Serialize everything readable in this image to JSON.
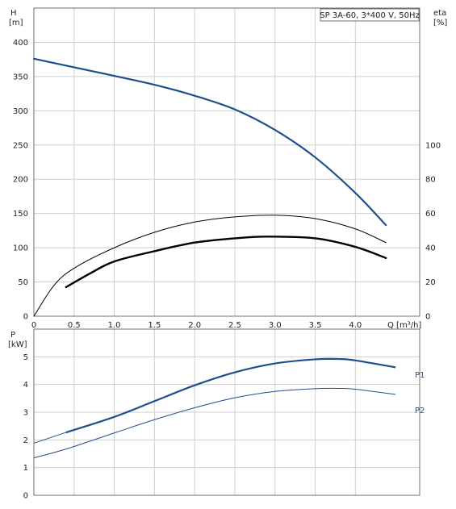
{
  "chart_data": [
    {
      "type": "line",
      "title": "SP 3A-60, 3*400 V, 50Hz",
      "xlabel": "Q [m³/h]",
      "ylabel": [
        "H",
        "[m]"
      ],
      "y2label": [
        "eta",
        "[%]"
      ],
      "xlim": [
        0,
        4.8
      ],
      "ylim": [
        0,
        450
      ],
      "y2lim": [
        0,
        180
      ],
      "grid": true,
      "x_ticks": [
        "0",
        "0.5",
        "1.0",
        "1.5",
        "2.0",
        "2.5",
        "3.0",
        "3.5",
        "4.0"
      ],
      "y_ticks": [
        "0",
        "50",
        "100",
        "150",
        "200",
        "250",
        "300",
        "350",
        "400"
      ],
      "y2_ticks": [
        "0",
        "20",
        "40",
        "60",
        "80",
        "100"
      ],
      "series": [
        {
          "role": "head",
          "axis": "y",
          "color": "#1f4e8c",
          "x": [
            0,
            0.4,
            1.0,
            1.5,
            2.0,
            2.5,
            3.0,
            3.5,
            4.0,
            4.38
          ],
          "y": [
            376,
            366,
            351,
            338,
            322,
            302,
            272,
            232,
            180,
            133
          ]
        },
        {
          "role": "efficiency-thin",
          "axis": "y2",
          "color": "#000000",
          "x": [
            0,
            0.25,
            0.5,
            1.0,
            1.5,
            2.0,
            2.5,
            3.0,
            3.5,
            4.0,
            4.38
          ],
          "y": [
            0,
            18,
            28,
            40,
            49,
            55,
            58,
            59,
            57,
            51,
            43
          ]
        },
        {
          "role": "efficiency-thick",
          "axis": "y2",
          "color": "#000000",
          "x": [
            0.4,
            0.7,
            1.0,
            1.5,
            2.0,
            2.5,
            2.9,
            3.5,
            4.0,
            4.38
          ],
          "y": [
            17,
            25,
            32,
            38,
            43,
            45.5,
            46.5,
            45.5,
            40.5,
            34
          ]
        }
      ]
    },
    {
      "type": "line",
      "ylabel": [
        "P",
        "[kW]"
      ],
      "xlim": [
        0,
        4.8
      ],
      "ylim": [
        0,
        6
      ],
      "grid": true,
      "y_ticks": [
        "0",
        "1",
        "2",
        "3",
        "4",
        "5"
      ],
      "series": [
        {
          "name": "P1",
          "color": "#1f4e8c",
          "x": [
            0,
            0.4,
            1.0,
            1.5,
            2.0,
            2.5,
            3.0,
            3.5,
            3.8,
            4.0,
            4.5
          ],
          "y": [
            1.88,
            2.27,
            2.83,
            3.4,
            3.97,
            4.44,
            4.76,
            4.91,
            4.92,
            4.87,
            4.62
          ]
        },
        {
          "name": "P2",
          "color": "#1f4e8c",
          "x": [
            0,
            0.4,
            1.0,
            1.5,
            2.0,
            2.5,
            3.0,
            3.5,
            3.8,
            4.0,
            4.5
          ],
          "y": [
            1.35,
            1.67,
            2.25,
            2.73,
            3.16,
            3.52,
            3.75,
            3.85,
            3.86,
            3.83,
            3.64
          ]
        }
      ]
    }
  ]
}
